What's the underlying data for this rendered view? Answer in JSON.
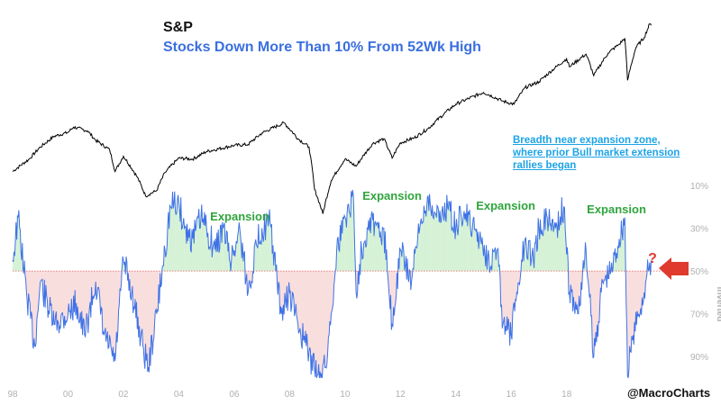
{
  "chart_data": [
    {
      "type": "line",
      "title": "S&P",
      "series": [
        {
          "values": [
            [
              1998.0,
              1000
            ],
            [
              1998.6,
              1120
            ],
            [
              1999.0,
              1250
            ],
            [
              1999.5,
              1380
            ],
            [
              2000.0,
              1430
            ],
            [
              2000.2,
              1500
            ],
            [
              2000.7,
              1450
            ],
            [
              2001.0,
              1330
            ],
            [
              2001.5,
              1220
            ],
            [
              2001.7,
              1000
            ],
            [
              2002.0,
              1150
            ],
            [
              2002.5,
              950
            ],
            [
              2002.8,
              800
            ],
            [
              2003.2,
              840
            ],
            [
              2003.5,
              990
            ],
            [
              2004.0,
              1130
            ],
            [
              2004.5,
              1120
            ],
            [
              2005.0,
              1200
            ],
            [
              2006.0,
              1270
            ],
            [
              2006.5,
              1280
            ],
            [
              2007.0,
              1420
            ],
            [
              2007.8,
              1560
            ],
            [
              2008.3,
              1350
            ],
            [
              2008.7,
              1250
            ],
            [
              2008.9,
              850
            ],
            [
              2009.2,
              680
            ],
            [
              2009.5,
              920
            ],
            [
              2010.0,
              1120
            ],
            [
              2010.4,
              1050
            ],
            [
              2011.0,
              1290
            ],
            [
              2011.4,
              1350
            ],
            [
              2011.7,
              1130
            ],
            [
              2012.0,
              1300
            ],
            [
              2012.5,
              1360
            ],
            [
              2013.0,
              1480
            ],
            [
              2014.0,
              1850
            ],
            [
              2015.0,
              2060
            ],
            [
              2015.7,
              1900
            ],
            [
              2016.1,
              1850
            ],
            [
              2016.5,
              2150
            ],
            [
              2017.0,
              2270
            ],
            [
              2018.0,
              2800
            ],
            [
              2018.1,
              2600
            ],
            [
              2018.7,
              2920
            ],
            [
              2018.98,
              2400
            ],
            [
              2019.5,
              2950
            ],
            [
              2019.9,
              3200
            ],
            [
              2020.1,
              3380
            ],
            [
              2020.2,
              2300
            ],
            [
              2020.5,
              3100
            ],
            [
              2020.8,
              3400
            ],
            [
              2021.0,
              3850
            ],
            [
              2021.05,
              3800
            ]
          ]
        }
      ]
    },
    {
      "type": "area",
      "title": "Stocks Down More Than 10% From 52Wk High",
      "ylabel": "inverted",
      "ylim": [
        100,
        10
      ],
      "yticks": [
        "10%",
        "30%",
        "50%",
        "70%",
        "90%"
      ],
      "xticks": [
        "98",
        "00",
        "02",
        "04",
        "06",
        "08",
        "10",
        "12",
        "14",
        "16",
        "18"
      ],
      "threshold": 50,
      "series": [
        {
          "values": [
            [
              1998.0,
              45
            ],
            [
              1998.2,
              25
            ],
            [
              1998.5,
              60
            ],
            [
              1998.8,
              85
            ],
            [
              1999.0,
              55
            ],
            [
              1999.5,
              75
            ],
            [
              2000.0,
              70
            ],
            [
              2000.3,
              65
            ],
            [
              2000.6,
              80
            ],
            [
              2001.0,
              55
            ],
            [
              2001.3,
              80
            ],
            [
              2001.7,
              92
            ],
            [
              2002.0,
              45
            ],
            [
              2002.3,
              60
            ],
            [
              2002.7,
              85
            ],
            [
              2002.9,
              95
            ],
            [
              2003.2,
              70
            ],
            [
              2003.5,
              40
            ],
            [
              2003.7,
              20
            ],
            [
              2004.0,
              18
            ],
            [
              2004.2,
              30
            ],
            [
              2004.5,
              35
            ],
            [
              2004.8,
              25
            ],
            [
              2005.0,
              30
            ],
            [
              2005.3,
              40
            ],
            [
              2005.6,
              30
            ],
            [
              2005.9,
              45
            ],
            [
              2006.2,
              30
            ],
            [
              2006.5,
              60
            ],
            [
              2006.8,
              38
            ],
            [
              2007.0,
              30
            ],
            [
              2007.3,
              28
            ],
            [
              2007.5,
              50
            ],
            [
              2007.7,
              70
            ],
            [
              2008.0,
              60
            ],
            [
              2008.3,
              75
            ],
            [
              2008.6,
              85
            ],
            [
              2008.9,
              96
            ],
            [
              2009.1,
              97
            ],
            [
              2009.3,
              95
            ],
            [
              2009.5,
              70
            ],
            [
              2009.7,
              40
            ],
            [
              2010.0,
              25
            ],
            [
              2010.3,
              15
            ],
            [
              2010.4,
              60
            ],
            [
              2010.6,
              40
            ],
            [
              2010.9,
              25
            ],
            [
              2011.2,
              30
            ],
            [
              2011.5,
              40
            ],
            [
              2011.7,
              75
            ],
            [
              2012.0,
              40
            ],
            [
              2012.4,
              55
            ],
            [
              2012.7,
              30
            ],
            [
              2013.0,
              15
            ],
            [
              2013.3,
              25
            ],
            [
              2013.7,
              20
            ],
            [
              2014.0,
              30
            ],
            [
              2014.3,
              22
            ],
            [
              2014.6,
              30
            ],
            [
              2014.9,
              35
            ],
            [
              2015.2,
              45
            ],
            [
              2015.5,
              40
            ],
            [
              2015.7,
              75
            ],
            [
              2016.0,
              80
            ],
            [
              2016.2,
              60
            ],
            [
              2016.5,
              35
            ],
            [
              2016.8,
              45
            ],
            [
              2017.0,
              30
            ],
            [
              2017.3,
              25
            ],
            [
              2017.6,
              30
            ],
            [
              2017.9,
              20
            ],
            [
              2018.1,
              60
            ],
            [
              2018.4,
              70
            ],
            [
              2018.7,
              40
            ],
            [
              2018.98,
              90
            ],
            [
              2019.3,
              55
            ],
            [
              2019.6,
              50
            ],
            [
              2019.9,
              35
            ],
            [
              2020.1,
              25
            ],
            [
              2020.2,
              99
            ],
            [
              2020.4,
              80
            ],
            [
              2020.6,
              70
            ],
            [
              2020.8,
              60
            ],
            [
              2020.95,
              50
            ],
            [
              2021.05,
              45
            ]
          ]
        }
      ]
    }
  ],
  "annotations": {
    "expansion_label": "Expansion",
    "note_lines": [
      "Breadth near expansion zone,",
      "where prior Bull market extension",
      "rallies began"
    ],
    "question": "?",
    "watermark": "@MacroCharts"
  },
  "colors": {
    "price_line": "#000000",
    "breadth_line": "#3f72e6",
    "expansion_fill": "#d6f2d6",
    "contraction_fill": "#f9dede",
    "threshold_line": "#e05a5a",
    "expansion_text": "#2fa53d",
    "note_text": "#1ca3e6",
    "arrow": "#e03a2f",
    "question": "#e03a2f",
    "axis_text": "#b0b0b0"
  }
}
